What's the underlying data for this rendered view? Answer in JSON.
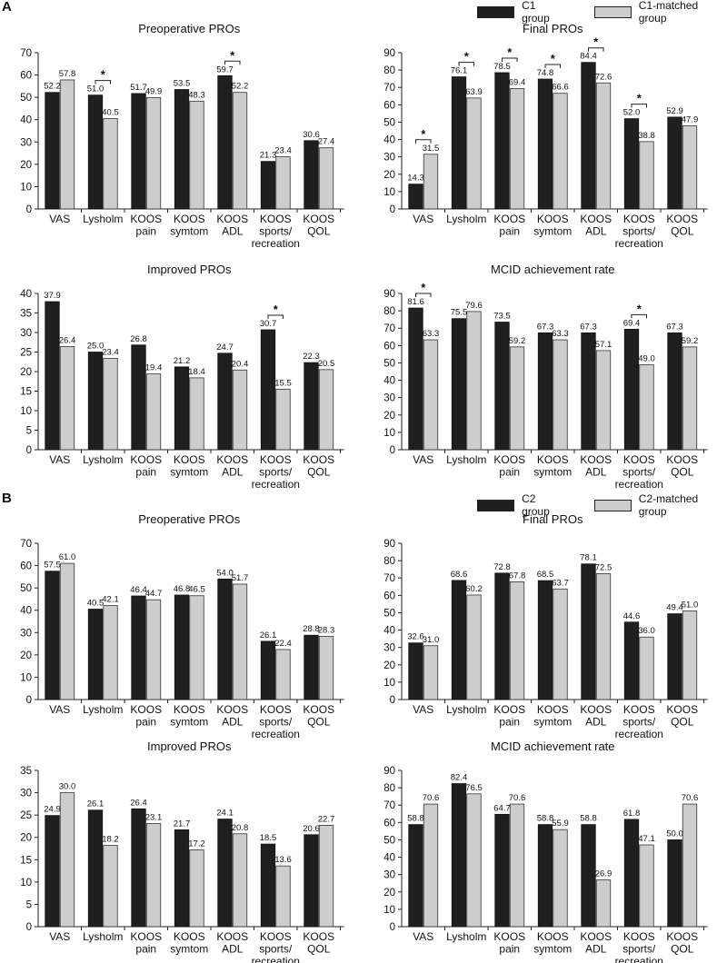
{
  "colors": {
    "dark": "#1f1f1f",
    "light": "#cdcdcd"
  },
  "sections": [
    {
      "label": "A",
      "legend": [
        {
          "name": "C1 group",
          "color": "#1f1f1f"
        },
        {
          "name": "C1-matched group",
          "color": "#cdcdcd"
        }
      ]
    },
    {
      "label": "B",
      "legend": [
        {
          "name": "C2 group",
          "color": "#1f1f1f"
        },
        {
          "name": "C2-matched group",
          "color": "#cdcdcd"
        }
      ]
    }
  ],
  "chart_data": [
    {
      "type": "bar",
      "title": "Preoperative PROs",
      "categories": [
        [
          "VAS"
        ],
        [
          "Lysholm"
        ],
        [
          "KOOS",
          "pain"
        ],
        [
          "KOOS",
          "symtom"
        ],
        [
          "KOOS",
          "ADL"
        ],
        [
          "KOOS",
          "sports/",
          "recreation"
        ],
        [
          "KOOS",
          "QOL"
        ]
      ],
      "series": [
        {
          "name": "C1 group",
          "values": [
            52.2,
            51.0,
            51.7,
            53.5,
            59.7,
            21.3,
            30.6
          ]
        },
        {
          "name": "C1-matched group",
          "values": [
            57.8,
            40.5,
            49.9,
            48.3,
            52.2,
            23.4,
            27.4
          ]
        }
      ],
      "labels": [
        [
          "52.2",
          "57.8"
        ],
        [
          "51.0",
          "40.5"
        ],
        [
          "51.7",
          "49.9"
        ],
        [
          "53.5",
          "48.3"
        ],
        [
          "59.7",
          "52.2"
        ],
        [
          "21.3",
          "23.4"
        ],
        [
          "30.6",
          "27.4"
        ]
      ],
      "significant": [
        1,
        4
      ],
      "ylim": [
        0,
        70
      ],
      "yticks": [
        0,
        10,
        20,
        30,
        40,
        50,
        60,
        70
      ]
    },
    {
      "type": "bar",
      "title": "Final PROs",
      "categories": [
        [
          "VAS"
        ],
        [
          "Lysholm"
        ],
        [
          "KOOS",
          "pain"
        ],
        [
          "KOOS",
          "symtom"
        ],
        [
          "KOOS",
          "ADL"
        ],
        [
          "KOOS",
          "sports/",
          "recreation"
        ],
        [
          "KOOS",
          "QOL"
        ]
      ],
      "series": [
        {
          "name": "C1 group",
          "values": [
            14.3,
            76.1,
            78.5,
            74.8,
            84.4,
            52.0,
            52.9
          ]
        },
        {
          "name": "C1-matched group",
          "values": [
            31.5,
            63.9,
            69.4,
            66.6,
            72.6,
            38.8,
            47.9
          ]
        }
      ],
      "labels": [
        [
          "14.3",
          "31.5"
        ],
        [
          "76.1",
          "63.9"
        ],
        [
          "78.5",
          "69.4"
        ],
        [
          "74.8",
          "66.6"
        ],
        [
          "84.4",
          "72.6"
        ],
        [
          "52.0",
          "38.8"
        ],
        [
          "52.9",
          "47.9"
        ]
      ],
      "significant": [
        0,
        1,
        2,
        3,
        4,
        5
      ],
      "ylim": [
        0,
        90
      ],
      "yticks": [
        0,
        10,
        20,
        30,
        40,
        50,
        60,
        70,
        80,
        90
      ]
    },
    {
      "type": "bar",
      "title": "Improved PROs",
      "categories": [
        [
          "VAS"
        ],
        [
          "Lysholm"
        ],
        [
          "KOOS",
          "pain"
        ],
        [
          "KOOS",
          "symtom"
        ],
        [
          "KOOS",
          "ADL"
        ],
        [
          "KOOS",
          "sports/",
          "recreation"
        ],
        [
          "KOOS",
          "QOL"
        ]
      ],
      "series": [
        {
          "name": "C1 group",
          "values": [
            37.9,
            25.0,
            26.8,
            21.2,
            24.7,
            30.7,
            22.3
          ]
        },
        {
          "name": "C1-matched group",
          "values": [
            26.4,
            23.4,
            19.4,
            18.4,
            20.4,
            15.5,
            20.5
          ]
        }
      ],
      "labels": [
        [
          "37.9",
          "26.4"
        ],
        [
          "25.0",
          "23.4"
        ],
        [
          "26.8",
          "19.4"
        ],
        [
          "21.2",
          "18.4"
        ],
        [
          "24.7",
          "20.4"
        ],
        [
          "30.7",
          "15.5"
        ],
        [
          "22.3",
          "20.5"
        ]
      ],
      "significant": [
        5
      ],
      "ylim": [
        0,
        40
      ],
      "yticks": [
        0,
        5,
        10,
        15,
        20,
        25,
        30,
        35,
        40
      ]
    },
    {
      "type": "bar",
      "title": "MCID achievement rate",
      "categories": [
        [
          "VAS"
        ],
        [
          "Lysholm"
        ],
        [
          "KOOS",
          "pain"
        ],
        [
          "KOOS",
          "symtom"
        ],
        [
          "KOOS",
          "ADL"
        ],
        [
          "KOOS",
          "sports/",
          "recreation"
        ],
        [
          "KOOS",
          "QOL"
        ]
      ],
      "series": [
        {
          "name": "C1 group",
          "values": [
            81.6,
            75.5,
            73.5,
            67.3,
            67.3,
            69.4,
            67.3
          ]
        },
        {
          "name": "C1-matched group",
          "values": [
            63.3,
            79.6,
            59.2,
            63.3,
            57.1,
            49.0,
            59.2
          ]
        }
      ],
      "labels": [
        [
          "81.6",
          "63.3"
        ],
        [
          "75.5",
          "79.6"
        ],
        [
          "73.5",
          "59.2"
        ],
        [
          "67.3",
          "63.3"
        ],
        [
          "67.3",
          "57.1"
        ],
        [
          "69.4",
          "49.0"
        ],
        [
          "67.3",
          "59.2"
        ]
      ],
      "significant": [
        0,
        5
      ],
      "ylim": [
        0,
        90
      ],
      "yticks": [
        0,
        10,
        20,
        30,
        40,
        50,
        60,
        70,
        80,
        90
      ]
    },
    {
      "type": "bar",
      "title": "Preoperative PROs",
      "categories": [
        [
          "VAS"
        ],
        [
          "Lysholm"
        ],
        [
          "KOOS",
          "pain"
        ],
        [
          "KOOS",
          "symtom"
        ],
        [
          "KOOS",
          "ADL"
        ],
        [
          "KOOS",
          "sports/",
          "recreation"
        ],
        [
          "KOOS",
          "QOL"
        ]
      ],
      "series": [
        {
          "name": "C2 group",
          "values": [
            57.5,
            40.5,
            46.4,
            46.8,
            54.0,
            26.1,
            28.8
          ]
        },
        {
          "name": "C2-matched group",
          "values": [
            61.0,
            42.1,
            44.7,
            46.5,
            51.7,
            22.4,
            28.3
          ]
        }
      ],
      "labels": [
        [
          "57.5",
          "61.0"
        ],
        [
          "40.5",
          "42.1"
        ],
        [
          "46.4",
          "44.7"
        ],
        [
          "46.8",
          "46.5"
        ],
        [
          "54.0",
          "51.7"
        ],
        [
          "26.1",
          "22.4"
        ],
        [
          "28.8",
          "28.3"
        ]
      ],
      "significant": [],
      "ylim": [
        0,
        70
      ],
      "yticks": [
        0,
        10,
        20,
        30,
        40,
        50,
        60,
        70
      ]
    },
    {
      "type": "bar",
      "title": "Final PROs",
      "categories": [
        [
          "VAS"
        ],
        [
          "Lysholm"
        ],
        [
          "KOOS",
          "pain"
        ],
        [
          "KOOS",
          "symtom"
        ],
        [
          "KOOS",
          "ADL"
        ],
        [
          "KOOS",
          "sports/",
          "recreation"
        ],
        [
          "KOOS",
          "QOL"
        ]
      ],
      "series": [
        {
          "name": "C2 group",
          "values": [
            32.6,
            68.6,
            72.8,
            68.5,
            78.1,
            44.6,
            49.4
          ]
        },
        {
          "name": "C2-matched group",
          "values": [
            31.0,
            60.2,
            67.8,
            63.7,
            72.5,
            36.0,
            51.0
          ]
        }
      ],
      "labels": [
        [
          "32.6",
          "31.0"
        ],
        [
          "68.6",
          "60.2"
        ],
        [
          "72.8",
          "67.8"
        ],
        [
          "68.5",
          "63.7"
        ],
        [
          "78.1",
          "72.5"
        ],
        [
          "44.6",
          "36.0"
        ],
        [
          "49.4",
          "51.0"
        ]
      ],
      "significant": [],
      "ylim": [
        0,
        90
      ],
      "yticks": [
        0,
        10,
        20,
        30,
        40,
        50,
        60,
        70,
        80,
        90
      ]
    },
    {
      "type": "bar",
      "title": "Improved PROs",
      "categories": [
        [
          "VAS"
        ],
        [
          "Lysholm"
        ],
        [
          "KOOS",
          "pain"
        ],
        [
          "KOOS",
          "symtom"
        ],
        [
          "KOOS",
          "ADL"
        ],
        [
          "KOOS",
          "sports/",
          "recreation"
        ],
        [
          "KOOS",
          "QOL"
        ]
      ],
      "series": [
        {
          "name": "C2 group",
          "values": [
            24.9,
            26.1,
            26.4,
            21.7,
            24.1,
            18.5,
            20.6
          ]
        },
        {
          "name": "C2-matched group",
          "values": [
            30.0,
            18.2,
            23.1,
            17.2,
            20.8,
            13.6,
            22.7
          ]
        }
      ],
      "labels": [
        [
          "24.9",
          "30.0"
        ],
        [
          "26.1",
          "18.2"
        ],
        [
          "26.4",
          "23.1"
        ],
        [
          "21.7",
          "17.2"
        ],
        [
          "24.1",
          "20.8"
        ],
        [
          "18.5",
          "13.6"
        ],
        [
          "20.6",
          "22.7"
        ]
      ],
      "significant": [],
      "ylim": [
        0,
        35
      ],
      "yticks": [
        0,
        5,
        10,
        15,
        20,
        25,
        30,
        35
      ]
    },
    {
      "type": "bar",
      "title": "MCID achievement rate",
      "categories": [
        [
          "VAS"
        ],
        [
          "Lysholm"
        ],
        [
          "KOOS",
          "pain"
        ],
        [
          "KOOS",
          "symtom"
        ],
        [
          "KOOS",
          "ADL"
        ],
        [
          "KOOS",
          "sports/",
          "recreation"
        ],
        [
          "KOOS",
          "QOL"
        ]
      ],
      "series": [
        {
          "name": "C2 group",
          "values": [
            58.8,
            82.4,
            64.7,
            58.8,
            58.8,
            61.8,
            50.0
          ]
        },
        {
          "name": "C2-matched group",
          "values": [
            70.6,
            76.5,
            70.6,
            55.9,
            26.9,
            47.1,
            70.6
          ]
        }
      ],
      "labels": [
        [
          "58.8",
          "70.6"
        ],
        [
          "82.4",
          "76.5"
        ],
        [
          "64.7",
          "70.6"
        ],
        [
          "58.8",
          "55.9"
        ],
        [
          "58.8",
          "26.9"
        ],
        [
          "61.8",
          "47.1"
        ],
        [
          "50.0",
          "70.6"
        ]
      ],
      "significant": [],
      "ylim": [
        0,
        90
      ],
      "yticks": [
        0,
        10,
        20,
        30,
        40,
        50,
        60,
        70,
        80,
        90
      ]
    }
  ]
}
